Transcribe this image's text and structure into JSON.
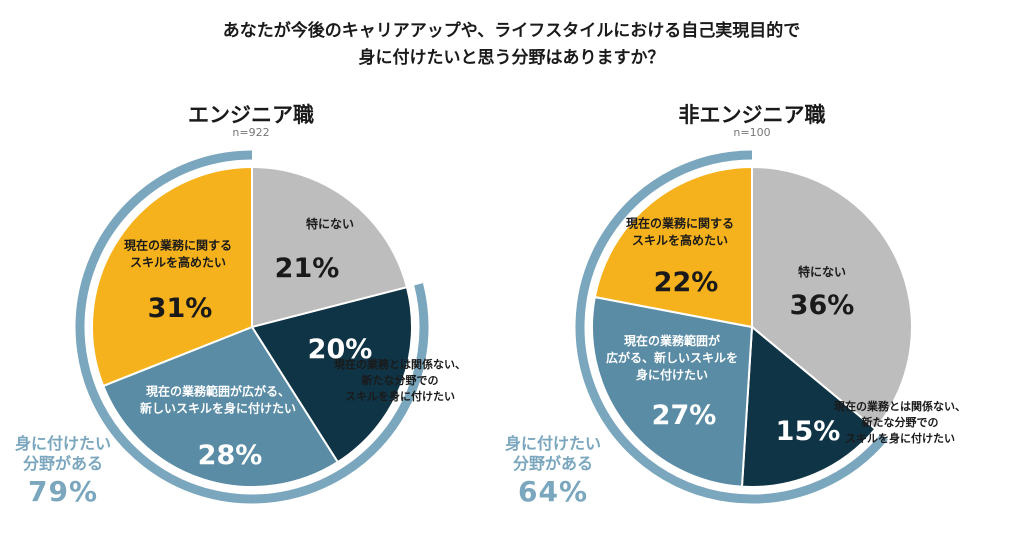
{
  "question": {
    "line1": "あなたが今後のキャリアアップや、ライフスタイルにおける自己実現目的で",
    "line2": "身に付けたいと思う分野はありますか？"
  },
  "colors": {
    "gray": "#bdbdbd",
    "yellow": "#f6b21c",
    "navy": "#0f3446",
    "steel": "#5a8ca6",
    "ring": "#7aa6be"
  },
  "chart_data": [
    {
      "type": "pie",
      "title": "エンジニア職",
      "sample": "n=922",
      "slices": [
        {
          "label_lines": [
            "特にない"
          ],
          "value": 21,
          "pct": "21%",
          "color": "#bdbdbd"
        },
        {
          "label_lines": [
            "現在の業務とは関係ない、",
            "新たな分野での",
            "スキルを身に付けたい"
          ],
          "value": 20,
          "pct": "20%",
          "color": "#0f3446"
        },
        {
          "label_lines": [
            "現在の業務範囲が広がる、",
            "新しいスキルを身に付けたい"
          ],
          "value": 28,
          "pct": "28%",
          "color": "#5a8ca6"
        },
        {
          "label_lines": [
            "現在の業務に関する",
            "スキルを高めたい"
          ],
          "value": 31,
          "pct": "31%",
          "color": "#f6b21c"
        }
      ],
      "ring_value": 79,
      "ring_label_lines": [
        "身に付けたい",
        "分野がある"
      ],
      "ring_pct": "79%"
    },
    {
      "type": "pie",
      "title": "非エンジニア職",
      "sample": "n=100",
      "slices": [
        {
          "label_lines": [
            "特にない"
          ],
          "value": 36,
          "pct": "36%",
          "color": "#bdbdbd"
        },
        {
          "label_lines": [
            "現在の業務とは関係ない、",
            "新たな分野での",
            "スキルを身に付けたい"
          ],
          "value": 15,
          "pct": "15%",
          "color": "#0f3446"
        },
        {
          "label_lines": [
            "現在の業務範囲が",
            "広がる、新しいスキルを",
            "身に付けたい"
          ],
          "value": 27,
          "pct": "27%",
          "color": "#5a8ca6"
        },
        {
          "label_lines": [
            "現在の業務に関する",
            "スキルを高めたい"
          ],
          "value": 22,
          "pct": "22%",
          "color": "#f6b21c"
        }
      ],
      "ring_value": 64,
      "ring_label_lines": [
        "身に付けたい",
        "分野がある"
      ],
      "ring_pct": "64%"
    }
  ]
}
